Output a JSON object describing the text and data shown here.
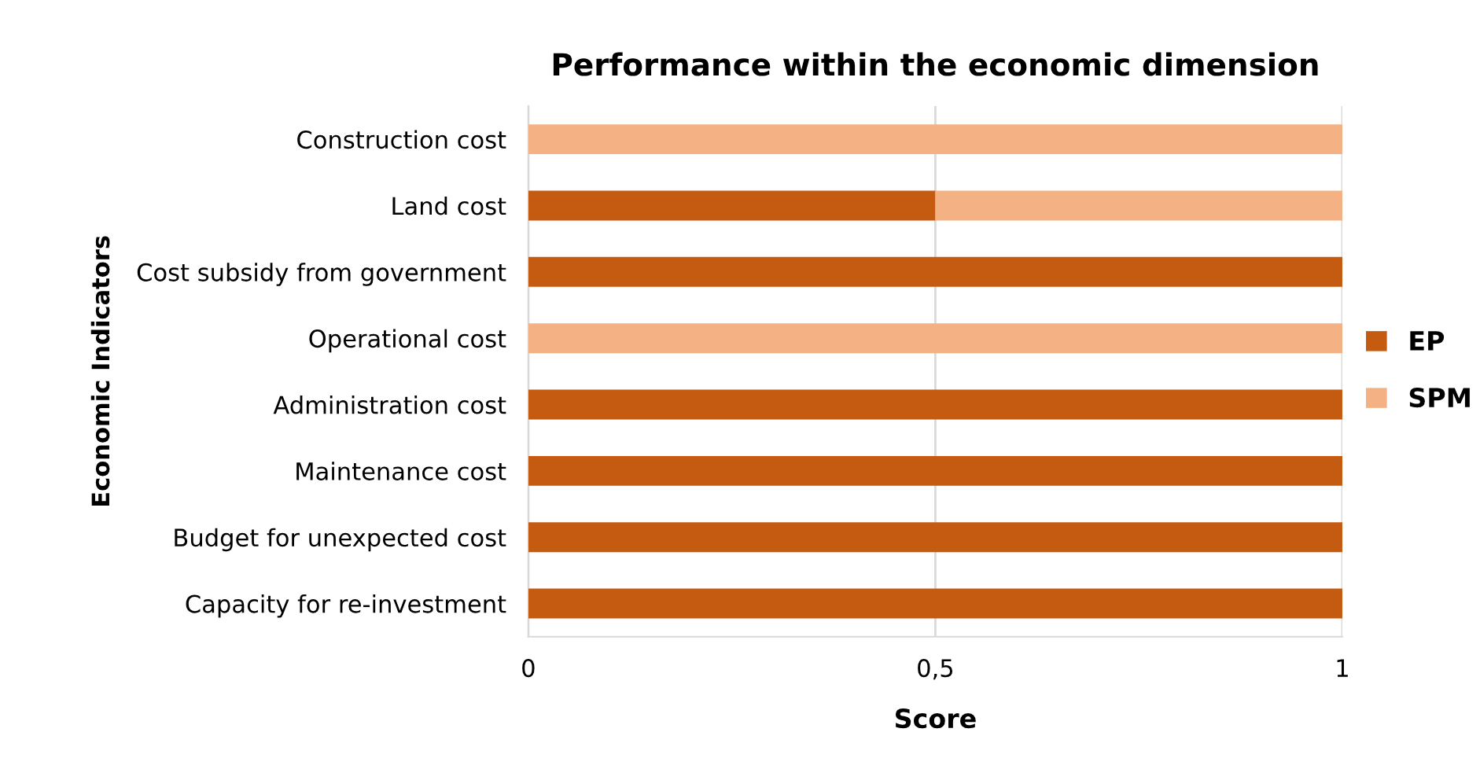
{
  "chart_data": {
    "type": "bar",
    "orientation": "horizontal",
    "stacked": true,
    "title": "Performance within the economic dimension",
    "xlabel": "Score",
    "ylabel": "Economic Indicators",
    "categories": [
      "Construction cost",
      "Land cost",
      "Cost subsidy from government",
      "Operational cost",
      "Administration cost",
      "Maintenance cost",
      "Budget for unexpected cost",
      "Capacity for re-investment"
    ],
    "series": [
      {
        "name": "EP",
        "color": "#c55a11",
        "values": [
          0,
          0.5,
          1,
          0,
          1,
          1,
          1,
          1
        ]
      },
      {
        "name": "SPM",
        "color": "#f4b183",
        "values": [
          1,
          0.5,
          0,
          1,
          0,
          0,
          0,
          0
        ]
      }
    ],
    "xlim": [
      0,
      1
    ],
    "xticks": [
      0,
      {
        "value": 0.5,
        "label": "0,5"
      },
      1
    ],
    "grid": "x",
    "legend": "right"
  }
}
